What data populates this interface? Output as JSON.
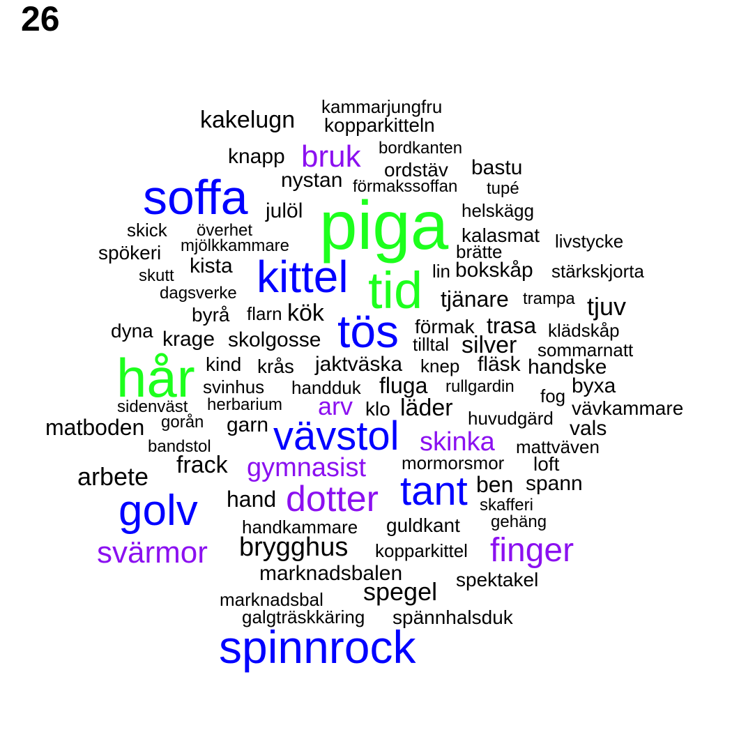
{
  "page_number": "26",
  "colors": {
    "green": "#1dff1d",
    "blue": "#0000ff",
    "purple": "#8b10f0",
    "black": "#000000"
  },
  "words": [
    "piga",
    "hår",
    "tid",
    "soffa",
    "kittel",
    "tös",
    "golv",
    "spinnrock",
    "vävstol",
    "tant",
    "dotter",
    "bruk",
    "arv",
    "skinka",
    "gymnasist",
    "svärmor",
    "finger",
    "kammarjungfru",
    "kopparkitteln",
    "kakelugn",
    "bordkanten",
    "knapp",
    "ordstäv",
    "bastu",
    "nystan",
    "förmakssoffan",
    "tupé",
    "julöl",
    "helskägg",
    "skick",
    "överhet",
    "kalasmat",
    "livstycke",
    "mjölkkammare",
    "spökeri",
    "brätte",
    "kista",
    "skutt",
    "lin",
    "bokskåp",
    "stärkskjorta",
    "dagsverke",
    "tjänare",
    "trampa",
    "tjuv",
    "byrå",
    "flarn",
    "kök",
    "dyna",
    "förmak",
    "trasa",
    "klädskåp",
    "krage",
    "skolgosse",
    "tilltal",
    "silver",
    "sommarnatt",
    "kind",
    "krås",
    "jaktväska",
    "knep",
    "fläsk",
    "handske",
    "svinhus",
    "handduk",
    "fluga",
    "rullgardin",
    "byxa",
    "fog",
    "sidenväst",
    "herbarium",
    "klo",
    "läder",
    "vävkammare",
    "matboden",
    "gorån",
    "garn",
    "huvudgärd",
    "vals",
    "bandstol",
    "mattväven",
    "frack",
    "mormorsmor",
    "loft",
    "arbete",
    "ben",
    "spann",
    "hand",
    "skafferi",
    "gehäng",
    "handkammare",
    "guldkant",
    "brygghus",
    "kopparkittel",
    "marknadsbalen",
    "spektakel",
    "spegel",
    "marknadsbal",
    "galgträskkäring",
    "spännhalsduk"
  ]
}
